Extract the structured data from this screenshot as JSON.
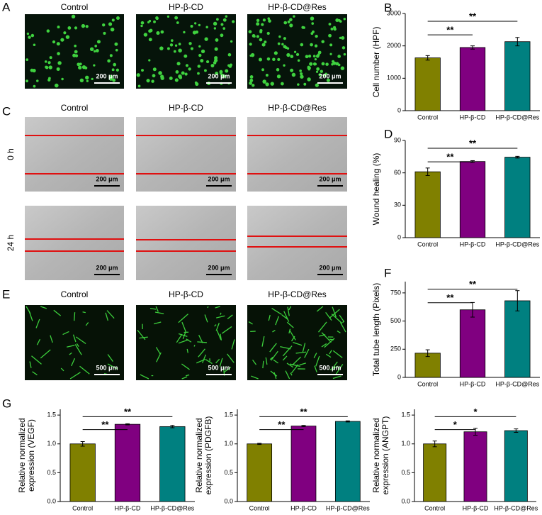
{
  "panels": [
    {
      "letter": "A",
      "titles": [
        "Control",
        "HP-β-CD",
        "HP-β-CD@Res"
      ],
      "scale_bar": "200 μm"
    },
    {
      "letter": "C",
      "titles": [
        "Control",
        "HP-β-CD",
        "HP-β-CD@Res"
      ],
      "rows": [
        "0 h",
        "24 h"
      ],
      "scale_bar": "200 μm"
    },
    {
      "letter": "E",
      "titles": [
        "Control",
        "HP-β-CD",
        "HP-β-CD@Res"
      ],
      "scale_bar": "500 μm"
    }
  ],
  "chart_data": [
    {
      "type": "bar",
      "panel": "B",
      "ylabel": [
        "Cell number (HPF)"
      ],
      "categories": [
        "Control",
        "HP-β-CD",
        "HP-β-CD@Res"
      ],
      "values": [
        1630,
        1950,
        2130
      ],
      "errors": [
        70,
        50,
        130
      ],
      "colors": [
        "#808000",
        "#800080",
        "#008080"
      ],
      "ylim": [
        0,
        3000
      ],
      "yticks": [
        0,
        1000,
        2000,
        3000
      ],
      "significance": [
        "**",
        "**"
      ]
    },
    {
      "type": "bar",
      "panel": "D",
      "ylabel": [
        "Wound healing (%)"
      ],
      "categories": [
        "Control",
        "HP-β-CD",
        "HP-β-CD@Res"
      ],
      "values": [
        61,
        70.5,
        74.5
      ],
      "errors": [
        3.5,
        0.8,
        0.8
      ],
      "colors": [
        "#808000",
        "#800080",
        "#008080"
      ],
      "ylim": [
        0,
        90
      ],
      "yticks": [
        0,
        30,
        60,
        90
      ],
      "significance": [
        "**",
        "**"
      ]
    },
    {
      "type": "bar",
      "panel": "F",
      "ylabel": [
        "Total tube length (Pixels)"
      ],
      "categories": [
        "Control",
        "HP-β-CD",
        "HP-β-CD@Res"
      ],
      "values": [
        215,
        600,
        680
      ],
      "errors": [
        30,
        65,
        90
      ],
      "colors": [
        "#808000",
        "#800080",
        "#008080"
      ],
      "ylim": [
        0,
        850
      ],
      "yticks": [
        0,
        250,
        500,
        750
      ],
      "significance": [
        "**",
        "**"
      ]
    },
    {
      "type": "bar",
      "panel": "G",
      "ylabel": [
        "Relative normalized",
        "expression (VEGF)"
      ],
      "categories": [
        "Control",
        "HP-β-CD",
        "HP-β-CD@Res"
      ],
      "values": [
        1.0,
        1.34,
        1.3
      ],
      "errors": [
        0.04,
        0.01,
        0.02
      ],
      "colors": [
        "#808000",
        "#800080",
        "#008080"
      ],
      "ylim": [
        0,
        1.6
      ],
      "yticks": [
        {
          "value": 0,
          "label": "0.0"
        },
        0.5,
        {
          "value": 1,
          "label": "1.0"
        },
        1.5
      ],
      "significance": [
        "**",
        "**"
      ]
    },
    {
      "type": "bar",
      "ylabel": [
        "Relative normalized",
        "expression (PDGFB)"
      ],
      "categories": [
        "Control",
        "HP-β-CD",
        "HP-β-CD@Res"
      ],
      "values": [
        1.0,
        1.31,
        1.39
      ],
      "errors": [
        0.01,
        0.01,
        0.01
      ],
      "colors": [
        "#808000",
        "#800080",
        "#008080"
      ],
      "ylim": [
        0,
        1.6
      ],
      "yticks": [
        {
          "value": 0,
          "label": "0.0"
        },
        0.5,
        {
          "value": 1,
          "label": "1.0"
        },
        1.5
      ],
      "significance": [
        "**",
        "**"
      ]
    },
    {
      "type": "bar",
      "ylabel": [
        "Relative normalized",
        "expression (ANGPT)"
      ],
      "categories": [
        "Control",
        "HP-β-CD",
        "HP-β-CD@Res"
      ],
      "values": [
        1.0,
        1.21,
        1.23
      ],
      "errors": [
        0.05,
        0.06,
        0.03
      ],
      "colors": [
        "#808000",
        "#800080",
        "#008080"
      ],
      "ylim": [
        0,
        1.6
      ],
      "yticks": [
        {
          "value": 0,
          "label": "0.0"
        },
        0.5,
        {
          "value": 1,
          "label": "1.0"
        },
        1.5
      ],
      "significance": [
        "*",
        "*"
      ]
    }
  ]
}
